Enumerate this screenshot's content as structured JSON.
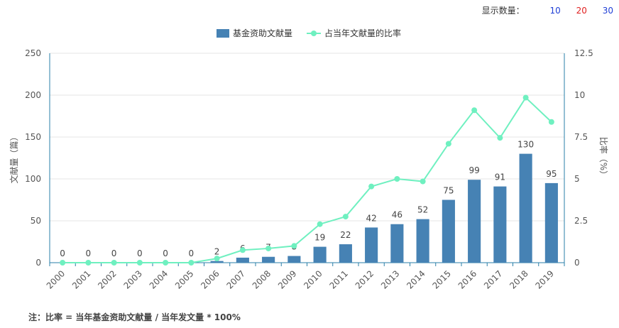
{
  "controls": {
    "label": "显示数量：",
    "options": [
      "10",
      "20",
      "30"
    ]
  },
  "note": "注：比率 = 当年基金资助文献量 / 当年发文量 * 100%",
  "colors": {
    "bar": "#4682b4",
    "line": "#6ff0c0",
    "grid": "#e6e6e6",
    "axis": "#2a7fa8"
  },
  "chart_data": {
    "type": "bar",
    "categories": [
      "2000",
      "2001",
      "2002",
      "2003",
      "2004",
      "2005",
      "2006",
      "2007",
      "2008",
      "2009",
      "2010",
      "2011",
      "2012",
      "2013",
      "2014",
      "2015",
      "2016",
      "2017",
      "2018",
      "2019"
    ],
    "series": [
      {
        "name": "基金资助文献量",
        "type": "bar",
        "axis": "left",
        "values": [
          0,
          0,
          0,
          0,
          0,
          0,
          2,
          6,
          7,
          8,
          19,
          22,
          42,
          46,
          52,
          75,
          99,
          91,
          130,
          95
        ]
      },
      {
        "name": "占当年文献量的比率",
        "type": "line",
        "axis": "right",
        "values": [
          0,
          0,
          0,
          0,
          0,
          0,
          0.25,
          0.75,
          0.85,
          1.0,
          2.3,
          2.75,
          4.55,
          5.0,
          4.85,
          7.1,
          9.1,
          7.45,
          9.85,
          8.4
        ]
      }
    ],
    "ylabel": "文献量（篇）",
    "ylabel_right": "比率（%）",
    "ylim": [
      0,
      250
    ],
    "ylim_right": [
      0,
      12.5
    ],
    "yticks": [
      "0",
      "50",
      "100",
      "150",
      "200",
      "250"
    ],
    "yticks_right": [
      "0",
      "2.5",
      "5",
      "7.5",
      "10",
      "12.5"
    ],
    "grid": true,
    "legend": "top-center"
  }
}
